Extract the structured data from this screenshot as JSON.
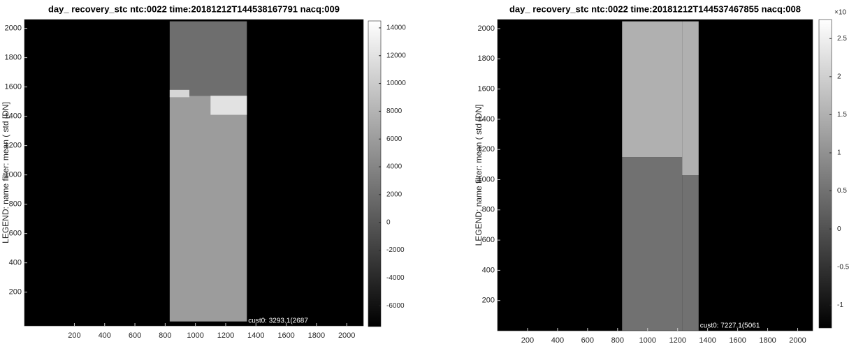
{
  "chart_data": [
    {
      "type": "heatmap",
      "title": "day_ recovery_stc ntc:0022 time:20181212T144538167791 nacq:009",
      "ylabel": "LEGEND: name filter: mean ( std [DN]",
      "annotation": "cust0: 3293.1(2687",
      "xlim": [
        -130,
        2110
      ],
      "ylim": [
        -30,
        2060
      ],
      "xticks": [
        200,
        400,
        600,
        800,
        1000,
        1200,
        1400,
        1600,
        1800,
        2000
      ],
      "yticks": [
        200,
        400,
        600,
        800,
        1000,
        1200,
        1400,
        1600,
        1800,
        2000
      ],
      "clim": [
        -7500,
        14500
      ],
      "cticks": [
        -6000,
        -4000,
        -2000,
        0,
        2000,
        4000,
        6000,
        8000,
        10000,
        12000,
        14000
      ],
      "background": -7500,
      "regions": [
        {
          "x": [
            830,
            1340
          ],
          "y": [
            1540,
            2048
          ],
          "value": 2000
        },
        {
          "x": [
            830,
            1340
          ],
          "y": [
            0,
            1540
          ],
          "value": 6000
        },
        {
          "x": [
            1100,
            1340
          ],
          "y": [
            1410,
            1540
          ],
          "value": 12000
        },
        {
          "x": [
            830,
            960
          ],
          "y": [
            1530,
            1580
          ],
          "value": 11000
        }
      ]
    },
    {
      "type": "heatmap",
      "title": "day_ recovery_stc ntc:0022 time:20181212T144537467855 nacq:008",
      "ylabel": "LEGEND: name filter: mean ( std [DN]",
      "annotation": "cust0: 7227.1(5061",
      "colorbar_exponent": "×10",
      "xlim": [
        0,
        2100
      ],
      "ylim": [
        0,
        2060
      ],
      "xticks": [
        200,
        400,
        600,
        800,
        1000,
        1200,
        1400,
        1600,
        1800,
        2000
      ],
      "yticks": [
        200,
        400,
        600,
        800,
        1000,
        1200,
        1400,
        1600,
        1800,
        2000
      ],
      "clim": [
        -1.3,
        2.75
      ],
      "cticks": [
        -1,
        -0.5,
        0,
        0.5,
        1,
        1.5,
        2,
        2.5
      ],
      "background": -1.3,
      "regions": [
        {
          "x": [
            830,
            1230
          ],
          "y": [
            1150,
            2048
          ],
          "value": 1.5
        },
        {
          "x": [
            1230,
            1340
          ],
          "y": [
            1030,
            2048
          ],
          "value": 1.5
        },
        {
          "x": [
            830,
            1230
          ],
          "y": [
            0,
            1150
          ],
          "value": 0.5
        },
        {
          "x": [
            1230,
            1340
          ],
          "y": [
            0,
            1030
          ],
          "value": 0.5
        }
      ]
    }
  ]
}
